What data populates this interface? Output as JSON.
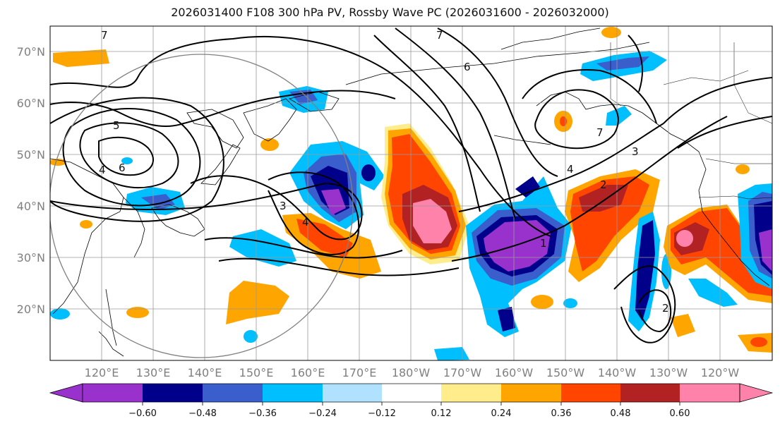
{
  "title": "2026031400 F108 300 hPa PV, Rossby Wave PC (2026031600 - 2026032000)",
  "lat_labels": [
    "70°N",
    "60°N",
    "50°N",
    "40°N",
    "30°N",
    "20°N"
  ],
  "lon_labels": [
    "120°E",
    "130°E",
    "140°E",
    "150°E",
    "160°E",
    "170°E",
    "180°W",
    "170°W",
    "160°W",
    "150°W",
    "140°W",
    "130°W",
    "120°W"
  ],
  "colorbar": {
    "tick_labels": [
      "−0.60",
      "−0.48",
      "−0.36",
      "−0.24",
      "−0.12",
      "0.12",
      "0.24",
      "0.36",
      "0.48",
      "0.60"
    ],
    "colors": [
      "#9932cc",
      "#00008b",
      "#3a5fcd",
      "#00bfff",
      "#b0e2ff",
      "#ffffff",
      "#ffec8b",
      "#ffa500",
      "#ff4500",
      "#b22222",
      "#ff82ab"
    ]
  },
  "contour_labels": [
    "7",
    "6",
    "5",
    "6",
    "4",
    "4",
    "3",
    "4",
    "3",
    "2",
    "1",
    "7",
    "7",
    "2"
  ],
  "regions": {
    "map_extent": {
      "lon_min": 110,
      "lon_max": 250,
      "lat_min": 10,
      "lat_max": 75
    }
  }
}
